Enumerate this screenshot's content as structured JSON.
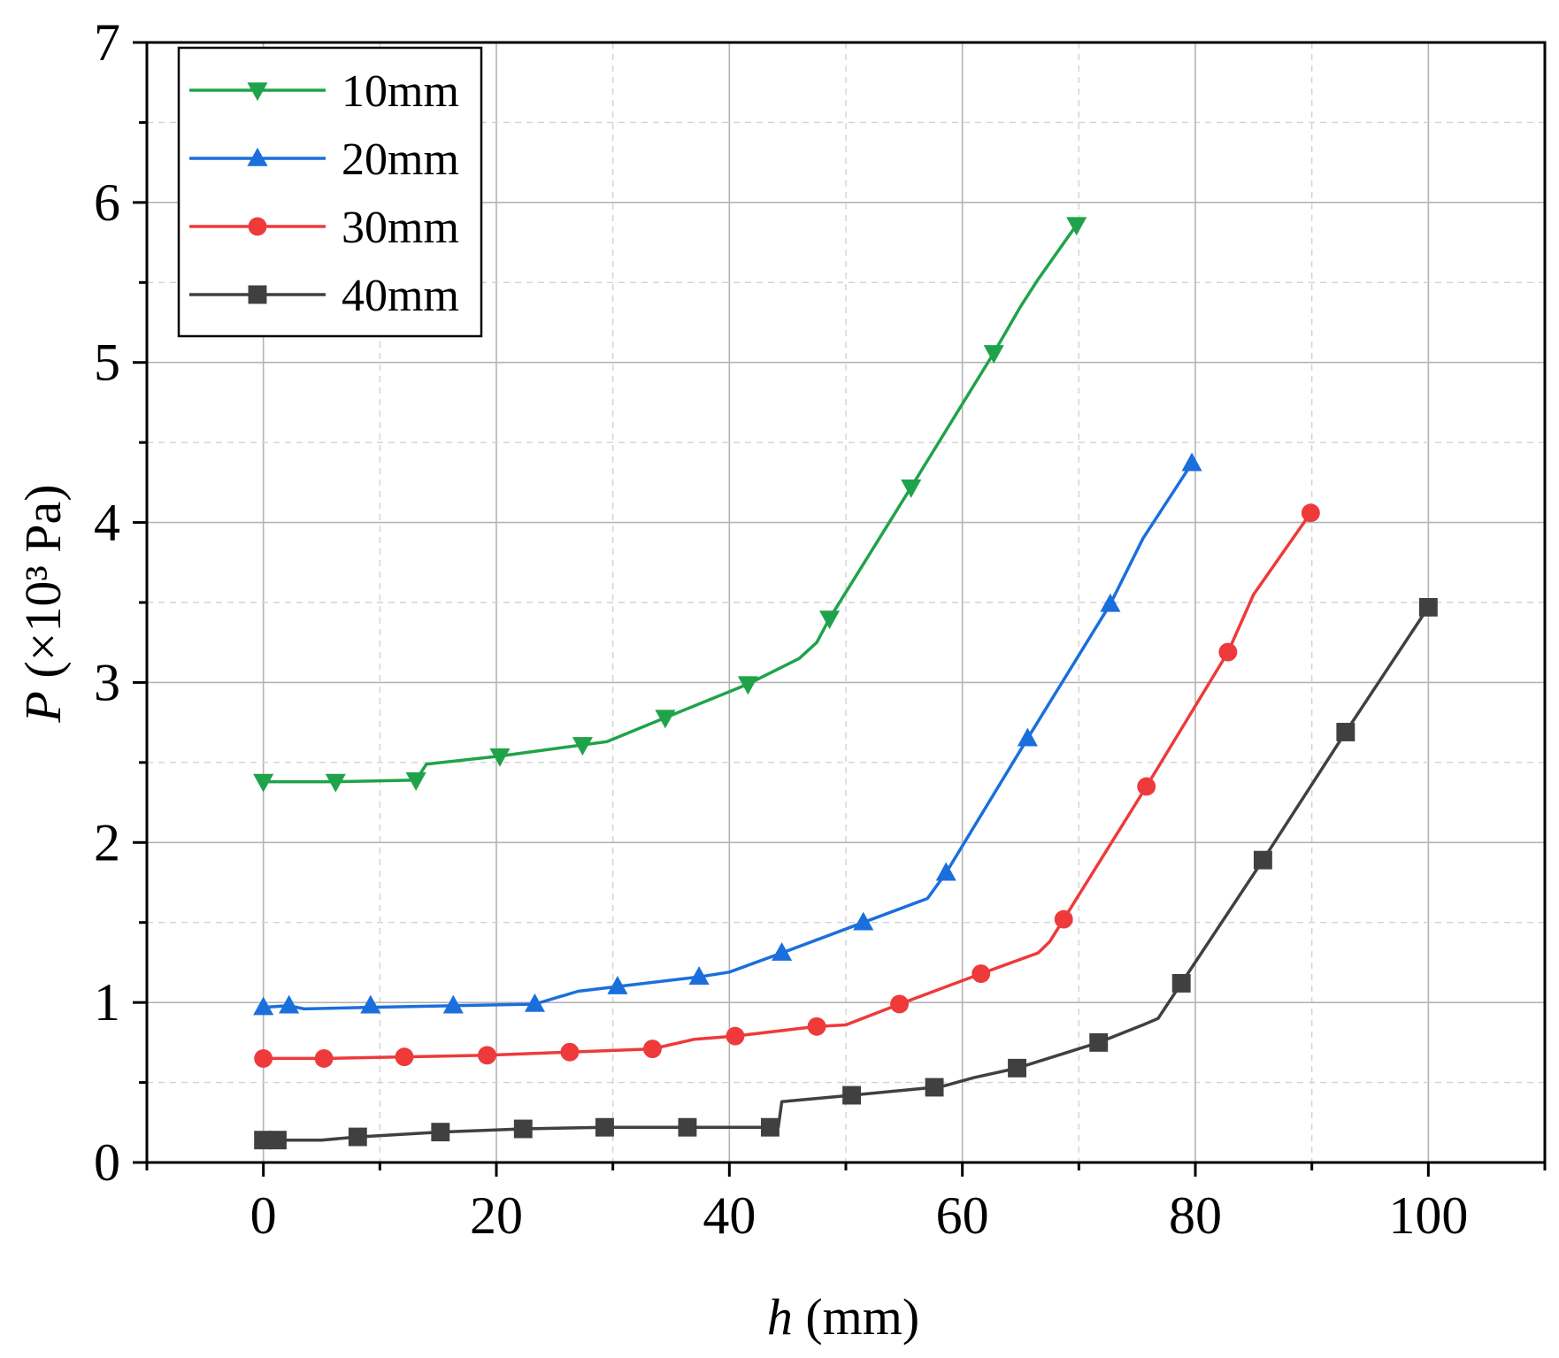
{
  "chart_data": {
    "type": "line",
    "title": "",
    "xlabel": "h",
    "xlabel_unit": "(mm)",
    "ylabel": "P",
    "ylabel_unit": "(×10³ Pa)",
    "xlim": [
      -10,
      110
    ],
    "ylim": [
      0,
      7
    ],
    "xticks": [
      0,
      20,
      40,
      60,
      80,
      100
    ],
    "yticks": [
      0,
      1,
      2,
      3,
      4,
      5,
      6,
      7
    ],
    "grid": true,
    "legend_position": "top-left",
    "series": [
      {
        "name": "10mm",
        "color": "#1fa34a",
        "marker": "triangle-down",
        "x": [
          0,
          6.2,
          13.1,
          20.3,
          27.4,
          34.5,
          41.6,
          48.6,
          55.6,
          62.7,
          69.8
        ],
        "y": [
          2.38,
          2.38,
          2.39,
          2.54,
          2.61,
          2.78,
          2.99,
          3.4,
          4.22,
          5.06,
          5.86
        ],
        "curve": [
          [
            0,
            2.38
          ],
          [
            6.2,
            2.38
          ],
          [
            13.1,
            2.39
          ],
          [
            14,
            2.49
          ],
          [
            20.3,
            2.54
          ],
          [
            27.4,
            2.61
          ],
          [
            29.5,
            2.63
          ],
          [
            34.5,
            2.78
          ],
          [
            41.6,
            2.99
          ],
          [
            46,
            3.15
          ],
          [
            47.5,
            3.25
          ],
          [
            48.6,
            3.4
          ],
          [
            55.6,
            4.22
          ],
          [
            62.7,
            5.06
          ],
          [
            65,
            5.35
          ],
          [
            66.5,
            5.52
          ],
          [
            69.8,
            5.86
          ]
        ]
      },
      {
        "name": "20mm",
        "color": "#1a6fdc",
        "marker": "triangle-up",
        "x": [
          0,
          2.2,
          9.2,
          16.3,
          23.3,
          30.4,
          37.4,
          44.5,
          51.5,
          58.6,
          65.6,
          72.7,
          79.7
        ],
        "y": [
          0.97,
          0.98,
          0.98,
          0.98,
          0.99,
          1.1,
          1.16,
          1.31,
          1.5,
          1.81,
          2.65,
          3.49,
          4.37
        ],
        "curve": [
          [
            0,
            0.97
          ],
          [
            2.2,
            0.98
          ],
          [
            3.5,
            0.96
          ],
          [
            9.2,
            0.97
          ],
          [
            16.3,
            0.98
          ],
          [
            23.3,
            0.99
          ],
          [
            27,
            1.07
          ],
          [
            30.4,
            1.1
          ],
          [
            37.4,
            1.16
          ],
          [
            40,
            1.19
          ],
          [
            44.5,
            1.31
          ],
          [
            51.5,
            1.5
          ],
          [
            57,
            1.65
          ],
          [
            58.6,
            1.81
          ],
          [
            65.6,
            2.65
          ],
          [
            72.7,
            3.49
          ],
          [
            75.5,
            3.9
          ],
          [
            79.7,
            4.37
          ]
        ]
      },
      {
        "name": "30mm",
        "color": "#ee3a3a",
        "marker": "circle",
        "x": [
          0,
          5.2,
          12.1,
          19.2,
          26.3,
          33.4,
          40.5,
          47.5,
          54.6,
          61.6,
          68.7,
          75.8,
          82.8,
          89.9
        ],
        "y": [
          0.65,
          0.65,
          0.66,
          0.67,
          0.69,
          0.71,
          0.79,
          0.85,
          0.99,
          1.18,
          1.52,
          2.35,
          3.19,
          4.06
        ],
        "curve": [
          [
            0,
            0.65
          ],
          [
            5.2,
            0.65
          ],
          [
            12.1,
            0.66
          ],
          [
            19.2,
            0.67
          ],
          [
            26.3,
            0.69
          ],
          [
            30,
            0.7
          ],
          [
            33.4,
            0.71
          ],
          [
            37,
            0.77
          ],
          [
            40.5,
            0.79
          ],
          [
            47.5,
            0.85
          ],
          [
            50,
            0.86
          ],
          [
            54.6,
            0.99
          ],
          [
            61.6,
            1.18
          ],
          [
            66.5,
            1.31
          ],
          [
            67.5,
            1.38
          ],
          [
            68.7,
            1.52
          ],
          [
            75.8,
            2.35
          ],
          [
            82.8,
            3.19
          ],
          [
            85,
            3.55
          ],
          [
            89.9,
            4.06
          ]
        ]
      },
      {
        "name": "40mm",
        "color": "#404040",
        "marker": "square",
        "x": [
          0,
          1.2,
          8.1,
          15.2,
          22.3,
          29.3,
          36.4,
          43.5,
          50.5,
          57.6,
          64.7,
          71.7,
          78.8,
          85.8,
          92.9,
          100
        ],
        "y": [
          0.14,
          0.14,
          0.16,
          0.19,
          0.21,
          0.22,
          0.22,
          0.22,
          0.42,
          0.47,
          0.59,
          0.75,
          1.12,
          1.89,
          2.69,
          3.47
        ],
        "curve": [
          [
            0,
            0.14
          ],
          [
            1.2,
            0.14
          ],
          [
            5,
            0.14
          ],
          [
            8.1,
            0.16
          ],
          [
            15.2,
            0.19
          ],
          [
            22.3,
            0.21
          ],
          [
            29.3,
            0.22
          ],
          [
            36.4,
            0.22
          ],
          [
            43.5,
            0.22
          ],
          [
            44.2,
            0.22
          ],
          [
            44.5,
            0.38
          ],
          [
            50.5,
            0.42
          ],
          [
            57.6,
            0.47
          ],
          [
            58.5,
            0.48
          ],
          [
            61,
            0.53
          ],
          [
            64.7,
            0.59
          ],
          [
            71.7,
            0.75
          ],
          [
            75.5,
            0.86
          ],
          [
            76.8,
            0.9
          ],
          [
            78.8,
            1.12
          ],
          [
            85.8,
            1.89
          ],
          [
            92.9,
            2.69
          ],
          [
            100,
            3.47
          ]
        ]
      }
    ]
  }
}
